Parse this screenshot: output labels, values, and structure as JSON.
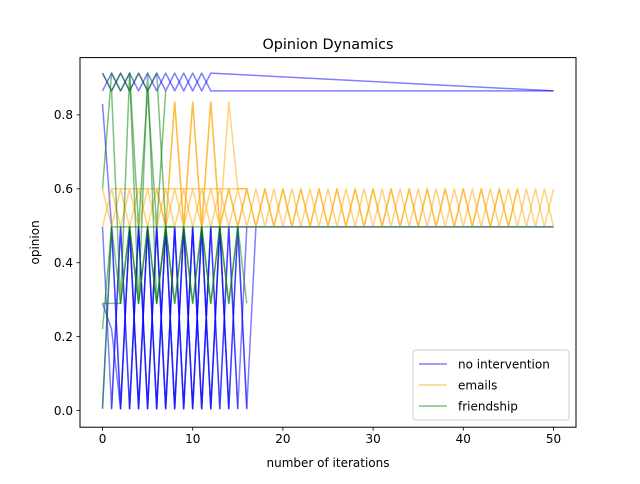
{
  "chart_data": {
    "type": "line",
    "title": "Opinion Dynamics",
    "xlabel": "number of iterations",
    "ylabel": "opinion",
    "xlim": [
      -2.5,
      52.5
    ],
    "ylim": [
      -0.045,
      0.955
    ],
    "xticks": [
      0,
      10,
      20,
      30,
      40,
      50
    ],
    "yticks": [
      0.0,
      0.2,
      0.4,
      0.6,
      0.8
    ],
    "ytick_labels": [
      "0.0",
      "0.2",
      "0.4",
      "0.6",
      "0.8"
    ],
    "grid": false,
    "legend_position": "lower right",
    "series": [
      {
        "name": "no intervention",
        "color": "#0000ff",
        "lines": [
          {
            "x": [
              0,
              1,
              2,
              3,
              4,
              5,
              6,
              7,
              8,
              9,
              10,
              11,
              12,
              50
            ],
            "y": [
              0.913,
              0.865,
              0.913,
              0.865,
              0.913,
              0.865,
              0.913,
              0.865,
              0.913,
              0.865,
              0.913,
              0.865,
              0.913,
              0.865
            ]
          },
          {
            "x": [
              0,
              1,
              2,
              3,
              4,
              5,
              6,
              7,
              8,
              9,
              10,
              11,
              12,
              13,
              50
            ],
            "y": [
              0.865,
              0.913,
              0.865,
              0.913,
              0.865,
              0.913,
              0.865,
              0.913,
              0.865,
              0.913,
              0.865,
              0.913,
              0.865,
              0.865,
              0.865
            ]
          },
          {
            "x": [
              0,
              1,
              2,
              3,
              4,
              5,
              6,
              7,
              8,
              9,
              10,
              11,
              12,
              13,
              14,
              15,
              16,
              17
            ],
            "y": [
              0.005,
              0.497,
              0.005,
              0.497,
              0.005,
              0.497,
              0.005,
              0.497,
              0.005,
              0.497,
              0.005,
              0.497,
              0.005,
              0.497,
              0.005,
              0.497,
              0.005,
              0.497
            ]
          },
          {
            "x": [
              0,
              1,
              2,
              3,
              4,
              5,
              6,
              7,
              8,
              9,
              10,
              11,
              12,
              13,
              14,
              15,
              16
            ],
            "y": [
              0.497,
              0.005,
              0.497,
              0.005,
              0.497,
              0.005,
              0.497,
              0.005,
              0.497,
              0.005,
              0.497,
              0.005,
              0.497,
              0.005,
              0.497,
              0.005,
              0.497
            ]
          },
          {
            "x": [
              0,
              1,
              2,
              3,
              4,
              5,
              6,
              7,
              8,
              9,
              10,
              11,
              12,
              13,
              14,
              15,
              16
            ],
            "y": [
              0.29,
              0.22,
              0.005,
              0.497,
              0.005,
              0.497,
              0.005,
              0.497,
              0.005,
              0.497,
              0.005,
              0.497,
              0.005,
              0.497,
              0.005,
              0.497,
              0.005
            ]
          },
          {
            "x": [
              1,
              2,
              3,
              4,
              5,
              6,
              7,
              8,
              9,
              10,
              11,
              12,
              13,
              14,
              15
            ],
            "y": [
              0.005,
              0.497,
              0.005,
              0.497,
              0.005,
              0.497,
              0.005,
              0.497,
              0.005,
              0.497,
              0.005,
              0.497,
              0.005,
              0.497,
              0.005
            ]
          },
          {
            "x": [
              0,
              1,
              2,
              3,
              4,
              5,
              6,
              7,
              8,
              9,
              10,
              11,
              12,
              13,
              14
            ],
            "y": [
              0.83,
              0.497,
              0.005,
              0.497,
              0.005,
              0.497,
              0.005,
              0.497,
              0.005,
              0.497,
              0.005,
              0.497,
              0.005,
              0.497,
              0.005
            ]
          },
          {
            "x": [
              3,
              4,
              5,
              6,
              7,
              8,
              9,
              10,
              11,
              12,
              13,
              50
            ],
            "y": [
              0.005,
              0.497,
              0.005,
              0.497,
              0.005,
              0.497,
              0.005,
              0.497,
              0.005,
              0.497,
              0.497,
              0.497
            ]
          }
        ]
      },
      {
        "name": "emails",
        "color": "#ffa500",
        "lines": [
          {
            "x": [
              0,
              1,
              2,
              3,
              4,
              5,
              6,
              7,
              8,
              9,
              10,
              11,
              12,
              13,
              14,
              15,
              16,
              17,
              18,
              19,
              20,
              21,
              22,
              23,
              24,
              25,
              26,
              27,
              28,
              29,
              30,
              31,
              32,
              33,
              34,
              35,
              36,
              37,
              38,
              39,
              40,
              41,
              42,
              43,
              44,
              45,
              46,
              47,
              48,
              49,
              50
            ],
            "y": [
              0.497,
              0.6,
              0.497,
              0.6,
              0.497,
              0.6,
              0.497,
              0.6,
              0.497,
              0.6,
              0.497,
              0.6,
              0.497,
              0.6,
              0.497,
              0.6,
              0.497,
              0.6,
              0.497,
              0.6,
              0.497,
              0.6,
              0.497,
              0.6,
              0.497,
              0.6,
              0.497,
              0.6,
              0.497,
              0.6,
              0.497,
              0.6,
              0.497,
              0.6,
              0.497,
              0.6,
              0.497,
              0.6,
              0.497,
              0.6,
              0.497,
              0.6,
              0.497,
              0.6,
              0.497,
              0.6,
              0.497,
              0.6,
              0.497,
              0.6,
              0.497
            ]
          },
          {
            "x": [
              0,
              1,
              2,
              3,
              4,
              5,
              6,
              7,
              8,
              9,
              10,
              11,
              12,
              13,
              14,
              15,
              16,
              17,
              18,
              19,
              20,
              21,
              22,
              23,
              24,
              25,
              26,
              27,
              28,
              29,
              30,
              31,
              32,
              33,
              34,
              35,
              36,
              37,
              38,
              39,
              40,
              41,
              42,
              43,
              44,
              45,
              46,
              47,
              48,
              49,
              50
            ],
            "y": [
              0.6,
              0.497,
              0.6,
              0.497,
              0.6,
              0.497,
              0.6,
              0.497,
              0.6,
              0.497,
              0.6,
              0.497,
              0.6,
              0.497,
              0.6,
              0.497,
              0.6,
              0.497,
              0.6,
              0.497,
              0.6,
              0.497,
              0.6,
              0.497,
              0.6,
              0.497,
              0.6,
              0.497,
              0.6,
              0.497,
              0.6,
              0.497,
              0.6,
              0.497,
              0.6,
              0.497,
              0.6,
              0.497,
              0.6,
              0.497,
              0.6,
              0.497,
              0.6,
              0.497,
              0.6,
              0.497,
              0.6,
              0.497,
              0.6,
              0.497,
              0.6
            ]
          },
          {
            "x": [
              6,
              7,
              8,
              9,
              10,
              11,
              12,
              13,
              14,
              15,
              16
            ],
            "y": [
              0.6,
              0.497,
              0.835,
              0.497,
              0.835,
              0.497,
              0.835,
              0.497,
              0.835,
              0.6,
              0.6
            ]
          },
          {
            "x": [
              7,
              8,
              9,
              10,
              11,
              12,
              13,
              14,
              15,
              16,
              17,
              18,
              19,
              20,
              21,
              22,
              23,
              24,
              25,
              26,
              27,
              28,
              29,
              30,
              31,
              32,
              33,
              34,
              35,
              36,
              37,
              38,
              39,
              40,
              41,
              42,
              43,
              44,
              45,
              46
            ],
            "y": [
              0.497,
              0.835,
              0.497,
              0.835,
              0.497,
              0.835,
              0.497,
              0.6,
              0.497,
              0.6,
              0.497,
              0.6,
              0.497,
              0.6,
              0.497,
              0.6,
              0.497,
              0.6,
              0.497,
              0.6,
              0.497,
              0.6,
              0.497,
              0.6,
              0.497,
              0.6,
              0.497,
              0.6,
              0.497,
              0.6,
              0.497,
              0.6,
              0.497,
              0.6,
              0.497,
              0.6,
              0.497,
              0.6,
              0.497,
              0.6
            ]
          },
          {
            "x": [
              1,
              2,
              3,
              4,
              5,
              6,
              7,
              8,
              9,
              10,
              11,
              12,
              13,
              14,
              15,
              16
            ],
            "y": [
              0.6,
              0.6,
              0.6,
              0.6,
              0.6,
              0.6,
              0.6,
              0.6,
              0.6,
              0.6,
              0.6,
              0.6,
              0.6,
              0.6,
              0.6,
              0.6
            ]
          }
        ]
      },
      {
        "name": "friendship",
        "color": "#008000",
        "lines": [
          {
            "x": [
              0,
              1,
              2,
              3,
              4,
              5,
              6,
              7,
              8,
              9,
              10,
              11,
              12,
              13,
              14,
              50
            ],
            "y": [
              0.005,
              0.497,
              0.497,
              0.497,
              0.497,
              0.497,
              0.497,
              0.497,
              0.497,
              0.497,
              0.497,
              0.497,
              0.497,
              0.497,
              0.497,
              0.497
            ]
          },
          {
            "x": [
              0,
              1,
              2,
              3,
              4,
              5,
              6,
              7
            ],
            "y": [
              0.6,
              0.913,
              0.865,
              0.913,
              0.497,
              0.865,
              0.497,
              0.865
            ]
          },
          {
            "x": [
              0,
              1,
              2,
              3,
              4,
              5,
              6,
              7,
              8
            ],
            "y": [
              0.913,
              0.865,
              0.29,
              0.913,
              0.29,
              0.913,
              0.29,
              0.497,
              0.497
            ]
          },
          {
            "x": [
              0,
              1,
              2,
              3,
              4,
              5,
              6,
              7,
              8,
              9,
              10,
              11,
              12,
              13,
              14,
              15,
              16
            ],
            "y": [
              0.22,
              0.497,
              0.29,
              0.497,
              0.29,
              0.497,
              0.29,
              0.497,
              0.29,
              0.497,
              0.29,
              0.497,
              0.29,
              0.497,
              0.29,
              0.497,
              0.29
            ]
          },
          {
            "x": [
              0,
              1,
              2,
              3,
              4,
              5,
              6,
              7,
              8,
              9,
              10,
              11,
              12,
              13,
              14,
              15
            ],
            "y": [
              0.29,
              0.29,
              0.29,
              0.497,
              0.29,
              0.497,
              0.29,
              0.497,
              0.29,
              0.497,
              0.29,
              0.497,
              0.29,
              0.497,
              0.29,
              0.497
            ]
          },
          {
            "x": [
              1,
              2,
              3,
              4,
              5,
              6,
              7,
              8
            ],
            "y": [
              0.865,
              0.913,
              0.865,
              0.913,
              0.865,
              0.913,
              0.497,
              0.497
            ]
          }
        ]
      }
    ]
  }
}
